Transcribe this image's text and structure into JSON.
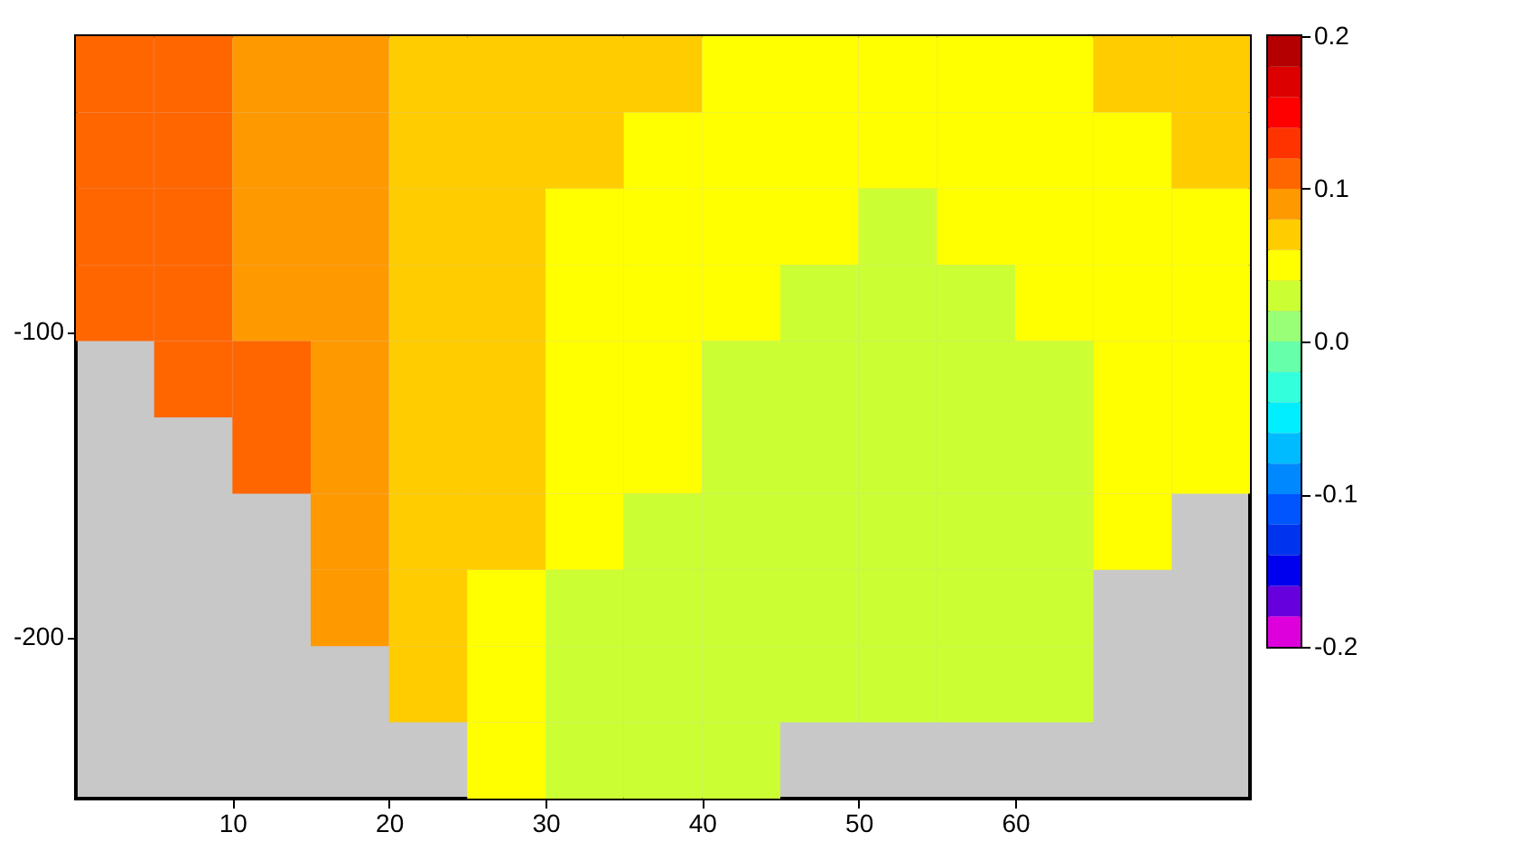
{
  "chart_data": {
    "type": "heatmap",
    "x": [
      2.5,
      7.5,
      12.5,
      17.5,
      22.5,
      27.5,
      32.5,
      37.5,
      42.5,
      47.5,
      52.5,
      57.5,
      62.5,
      67.5,
      72.5
    ],
    "y": [
      -15.5,
      -40.5,
      -65.5,
      -90.5,
      -115.5,
      -140.5,
      -165.5,
      -190.5,
      -215.5,
      -240.5
    ],
    "cells": [
      [
        0.11,
        0.11,
        0.09,
        0.09,
        0.07,
        0.07,
        0.07,
        0.07,
        0.05,
        0.05,
        0.05,
        0.05,
        0.05,
        0.07,
        0.07
      ],
      [
        0.11,
        0.11,
        0.09,
        0.09,
        0.07,
        0.07,
        0.07,
        0.05,
        0.05,
        0.05,
        0.05,
        0.05,
        0.05,
        0.05,
        0.07
      ],
      [
        0.11,
        0.11,
        0.09,
        0.09,
        0.07,
        0.07,
        0.05,
        0.05,
        0.05,
        0.05,
        0.03,
        0.05,
        0.05,
        0.05,
        0.05
      ],
      [
        0.11,
        0.11,
        0.09,
        0.09,
        0.07,
        0.07,
        0.05,
        0.05,
        0.05,
        0.03,
        0.03,
        0.03,
        0.05,
        0.05,
        0.05
      ],
      [
        null,
        0.11,
        0.11,
        0.09,
        0.07,
        0.07,
        0.05,
        0.05,
        0.03,
        0.03,
        0.03,
        0.03,
        0.03,
        0.05,
        0.05
      ],
      [
        null,
        null,
        0.11,
        0.09,
        0.07,
        0.07,
        0.05,
        0.05,
        0.03,
        0.03,
        0.03,
        0.03,
        0.03,
        0.05,
        0.05
      ],
      [
        null,
        null,
        null,
        0.09,
        0.07,
        0.07,
        0.05,
        0.03,
        0.03,
        0.03,
        0.03,
        0.03,
        0.03,
        0.05,
        null
      ],
      [
        null,
        null,
        null,
        0.09,
        0.07,
        0.05,
        0.03,
        0.03,
        0.03,
        0.03,
        0.03,
        0.03,
        0.03,
        null,
        null
      ],
      [
        null,
        null,
        null,
        null,
        0.07,
        0.05,
        0.03,
        0.03,
        0.03,
        0.03,
        0.03,
        0.03,
        0.03,
        null,
        null
      ],
      [
        null,
        null,
        null,
        null,
        null,
        0.05,
        0.03,
        0.03,
        0.03,
        null,
        null,
        null,
        null,
        null,
        null
      ]
    ],
    "xlim": [
      0,
      75
    ],
    "xticks": [
      10,
      20,
      30,
      40,
      50,
      60
    ],
    "ylim": [
      -253,
      -3
    ],
    "yticks": [
      -100,
      -200
    ],
    "clim": [
      -0.2,
      0.2
    ],
    "cticks": [
      -0.2,
      -0.1,
      {
        "value": 0,
        "label": "0.0"
      },
      0.1,
      0.2
    ],
    "grid": false
  }
}
